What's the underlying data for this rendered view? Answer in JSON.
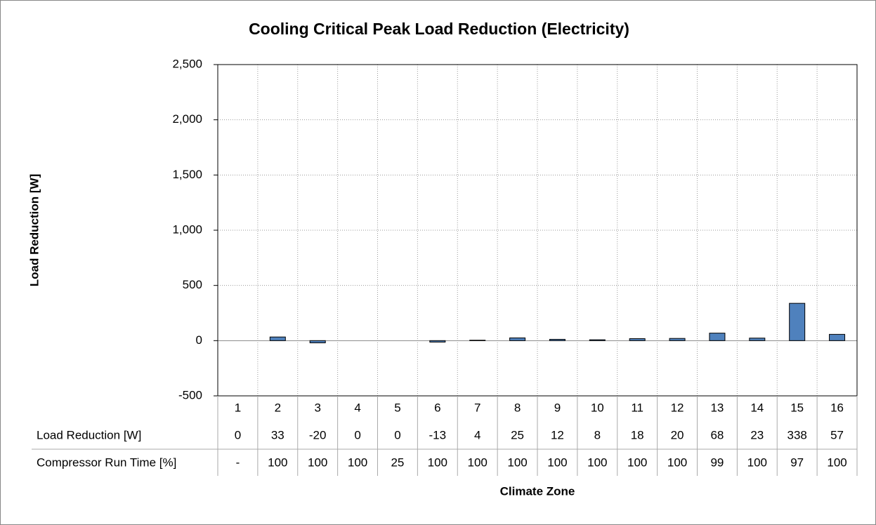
{
  "chart_data": {
    "type": "bar",
    "title": "Cooling Critical Peak Load Reduction (Electricity)",
    "xlabel": "Climate Zone",
    "ylabel": "Load Reduction [W]",
    "categories": [
      "1",
      "2",
      "3",
      "4",
      "5",
      "6",
      "7",
      "8",
      "9",
      "10",
      "11",
      "12",
      "13",
      "14",
      "15",
      "16"
    ],
    "series": [
      {
        "name": "Load Reduction [W]",
        "color": "#4f81bd",
        "values": [
          0,
          33,
          -20,
          0,
          0,
          -13,
          4,
          25,
          12,
          8,
          18,
          20,
          68,
          23,
          338,
          57
        ]
      }
    ],
    "ylim": [
      -500,
      2500
    ],
    "yticks": [
      -500,
      0,
      500,
      {
        "value": 1000,
        "label": "1,000"
      },
      {
        "value": 1500,
        "label": "1,500"
      },
      {
        "value": 2000,
        "label": "2,000"
      },
      {
        "value": 2500,
        "label": "2,500"
      }
    ],
    "grid": true,
    "data_table": {
      "rows": [
        {
          "name": "Compressor Run Time [%]",
          "values": [
            "-",
            100,
            100,
            100,
            25,
            100,
            100,
            100,
            100,
            100,
            100,
            100,
            99,
            100,
            97,
            100
          ]
        }
      ]
    }
  }
}
